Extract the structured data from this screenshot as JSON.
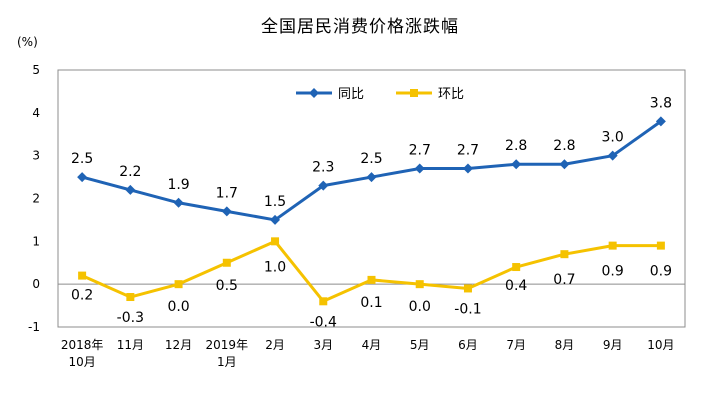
{
  "chart_data": {
    "type": "line",
    "title": "全国居民消费价格涨跌幅",
    "ylabel": "(%)",
    "xlabel": "",
    "ylim": [
      -1,
      5
    ],
    "yticks": [
      "5",
      "4",
      "3",
      "2",
      "1",
      "0",
      "-1"
    ],
    "categories": [
      [
        "2018年",
        "10月"
      ],
      [
        "11月"
      ],
      [
        "12月"
      ],
      [
        "2019年",
        "1月"
      ],
      [
        "2月"
      ],
      [
        "3月"
      ],
      [
        "4月"
      ],
      [
        "5月"
      ],
      [
        "6月"
      ],
      [
        "7月"
      ],
      [
        "8月"
      ],
      [
        "9月"
      ],
      [
        "10月"
      ]
    ],
    "legend_position": "top-center",
    "grid": false,
    "series": [
      {
        "name": "同比",
        "color": "#1f63b5",
        "marker": "diamond",
        "values": [
          2.5,
          2.2,
          1.9,
          1.7,
          1.5,
          2.3,
          2.5,
          2.7,
          2.7,
          2.8,
          2.8,
          3.0,
          3.8
        ],
        "labels": [
          "2.5",
          "2.2",
          "1.9",
          "1.7",
          "1.5",
          "2.3",
          "2.5",
          "2.7",
          "2.7",
          "2.8",
          "2.8",
          "3.0",
          "3.8"
        ]
      },
      {
        "name": "环比",
        "color": "#f5c200",
        "marker": "square",
        "values": [
          0.2,
          -0.3,
          0.0,
          0.5,
          1.0,
          -0.4,
          0.1,
          0.0,
          -0.1,
          0.4,
          0.7,
          0.9,
          0.9
        ],
        "labels": [
          "0.2",
          "-0.3",
          "0.0",
          "0.5",
          "1.0",
          "-0.4",
          "0.1",
          "0.0",
          "-0.1",
          "0.4",
          "0.7",
          "0.9",
          "0.9"
        ]
      }
    ]
  }
}
